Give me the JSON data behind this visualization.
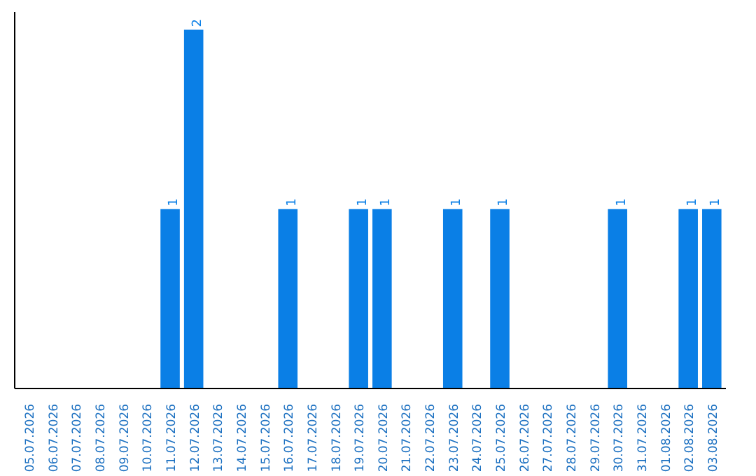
{
  "chart_data": {
    "type": "bar",
    "categories": [
      "05.07.2026",
      "06.07.2026",
      "07.07.2026",
      "08.07.2026",
      "09.07.2026",
      "10.07.2026",
      "11.07.2026",
      "12.07.2026",
      "13.07.2026",
      "14.07.2026",
      "15.07.2026",
      "16.07.2026",
      "17.07.2026",
      "18.07.2026",
      "19.07.2026",
      "20.07.2026",
      "21.07.2026",
      "22.07.2026",
      "23.07.2026",
      "24.07.2026",
      "25.07.2026",
      "26.07.2026",
      "27.07.2026",
      "28.07.2026",
      "29.07.2026",
      "30.07.2026",
      "31.07.2026",
      "01.08.2026",
      "02.08.2026",
      "03.08.2026"
    ],
    "values": [
      0,
      0,
      0,
      0,
      0,
      0,
      1,
      2,
      0,
      0,
      0,
      1,
      0,
      0,
      1,
      1,
      0,
      0,
      1,
      0,
      1,
      0,
      0,
      0,
      0,
      1,
      0,
      0,
      1,
      1
    ],
    "value_labels": [
      null,
      null,
      null,
      null,
      null,
      null,
      "1",
      "2",
      null,
      null,
      null,
      "1",
      null,
      null,
      "1",
      "1",
      null,
      null,
      "1",
      null,
      "1",
      null,
      null,
      null,
      null,
      "1",
      null,
      null,
      "1",
      "1"
    ],
    "color": "#0a7fe6",
    "grid": false,
    "tick_labels": "x"
  }
}
